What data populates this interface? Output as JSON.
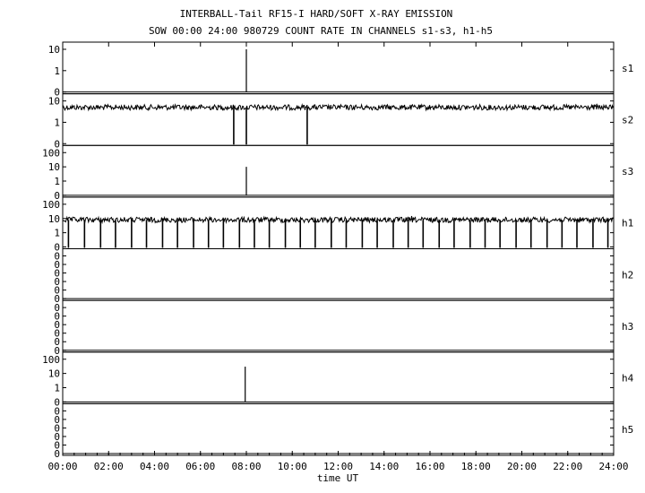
{
  "chart_data": {
    "type": "line",
    "title": "INTERBALL-Tail RF15-I HARD/SOFT X-RAY EMISSION",
    "subtitle": "SOW 00:00 24:00 980729  COUNT RATE IN CHANNELS s1-s3, h1-h5",
    "xlabel": "time UT",
    "x_ticks": [
      "00:00",
      "02:00",
      "04:00",
      "06:00",
      "08:00",
      "10:00",
      "12:00",
      "14:00",
      "16:00",
      "18:00",
      "20:00",
      "22:00",
      "24:00"
    ],
    "xlim_hours": [
      0,
      24
    ],
    "y_scale": "log",
    "grid": false,
    "panels": [
      {
        "name": "s1",
        "yticks": [
          "10",
          "1",
          "0"
        ],
        "baseline": 0,
        "spikes": [
          {
            "t": 8.0,
            "v": 50
          }
        ],
        "dropouts": []
      },
      {
        "name": "s2",
        "yticks": [
          "10",
          "1",
          "0"
        ],
        "baseline": 5,
        "spikes": [],
        "dropouts": [
          7.45,
          8.0,
          10.65
        ]
      },
      {
        "name": "s3",
        "yticks": [
          "100",
          "10",
          "1",
          "0"
        ],
        "baseline": 0,
        "spikes": [
          {
            "t": 8.0,
            "v": 10
          }
        ],
        "dropouts": []
      },
      {
        "name": "h1",
        "yticks": [
          "100",
          "10",
          "1",
          "0"
        ],
        "baseline": 8,
        "spikes": [
          {
            "t": 13.6,
            "v": 12
          },
          {
            "t": 15.2,
            "v": 15
          },
          {
            "t": 17.0,
            "v": 12
          }
        ],
        "dropouts": [
          0.25,
          0.95,
          1.65,
          2.3,
          3.0,
          3.65,
          4.35,
          5.0,
          5.7,
          6.35,
          7.0,
          7.7,
          8.35,
          9.0,
          9.7,
          10.35,
          11.0,
          11.7,
          12.35,
          13.05,
          13.7,
          14.4,
          15.05,
          15.7,
          16.4,
          17.05,
          17.75,
          18.4,
          19.05,
          19.75,
          20.4,
          21.1,
          21.75,
          22.4,
          23.1,
          23.75
        ]
      },
      {
        "name": "h2",
        "yticks": [
          "0",
          "0",
          "0",
          "0",
          "0",
          "0"
        ],
        "baseline": 0,
        "spikes": [],
        "dropouts": []
      },
      {
        "name": "h3",
        "yticks": [
          "0",
          "0",
          "0",
          "0",
          "0",
          "0"
        ],
        "baseline": 0,
        "spikes": [],
        "dropouts": []
      },
      {
        "name": "h4",
        "yticks": [
          "100",
          "10",
          "1",
          "0"
        ],
        "baseline": 0,
        "spikes": [
          {
            "t": 7.95,
            "v": 30
          }
        ],
        "dropouts": []
      },
      {
        "name": "h5",
        "yticks": [
          "0",
          "0",
          "0",
          "0",
          "0",
          "0"
        ],
        "baseline": 0,
        "spikes": [],
        "dropouts": []
      }
    ]
  }
}
